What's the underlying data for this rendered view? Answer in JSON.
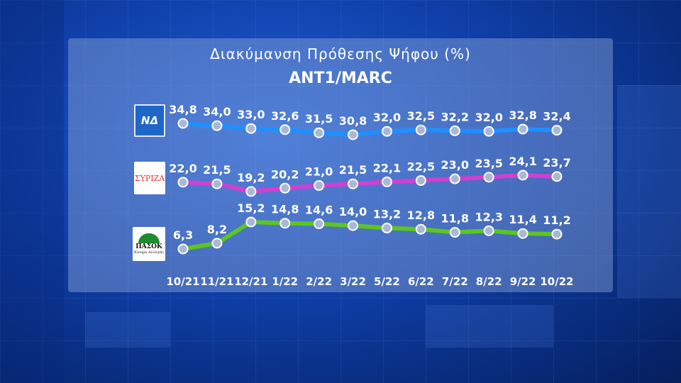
{
  "chart_data": {
    "type": "line",
    "title": "Διακύμανση Πρόθεσης Ψήφου (%)",
    "subtitle": "ANT1/MARC",
    "categories": [
      "10/21",
      "11/21",
      "12/21",
      "1/22",
      "2/22",
      "3/22",
      "5/22",
      "6/22",
      "7/22",
      "8/22",
      "9/22",
      "10/22"
    ],
    "series": [
      {
        "logo": "ΝΔ",
        "color": "#1e90ff",
        "values": [
          34.8,
          34.0,
          33.0,
          32.6,
          31.5,
          30.8,
          32.0,
          32.5,
          32.2,
          32.0,
          32.8,
          32.4
        ],
        "labels": [
          "34,8",
          "34,0",
          "33,0",
          "32,6",
          "31,5",
          "30,8",
          "32,0",
          "32,5",
          "32,2",
          "32,0",
          "32,8",
          "32,4"
        ]
      },
      {
        "logo": "ΣΥΡΙΖΑ",
        "color": "#d23fd2",
        "values": [
          22.0,
          21.5,
          19.2,
          20.2,
          21.0,
          21.5,
          22.1,
          22.5,
          23.0,
          23.5,
          24.1,
          23.7
        ],
        "labels": [
          "22,0",
          "21,5",
          "19,2",
          "20,2",
          "21,0",
          "21,5",
          "22,1",
          "22,5",
          "23,0",
          "23,5",
          "24,1",
          "23,7"
        ]
      },
      {
        "logo": "ΠΑΣΟΚ",
        "color": "#5cc61e",
        "values": [
          6.3,
          8.2,
          15.2,
          14.8,
          14.6,
          14.0,
          13.2,
          12.8,
          11.8,
          12.3,
          11.4,
          11.2
        ],
        "labels": [
          "6,3",
          "8,2",
          "15,2",
          "14,8",
          "14,6",
          "14,0",
          "13,2",
          "12,8",
          "11,8",
          "12,3",
          "11,4",
          "11,2"
        ]
      }
    ]
  },
  "logos": {
    "nd": {
      "text": "ΝΔ",
      "color": "#1f66c9"
    },
    "syriza": {
      "text": "ΣΥΡΙΖΑ",
      "color": "#e2312d"
    },
    "pasok": {
      "text": "ΠΑΣΟΚ",
      "subtext": "Κίνημα Αλλαγής",
      "color": "#1e8b2e"
    }
  }
}
